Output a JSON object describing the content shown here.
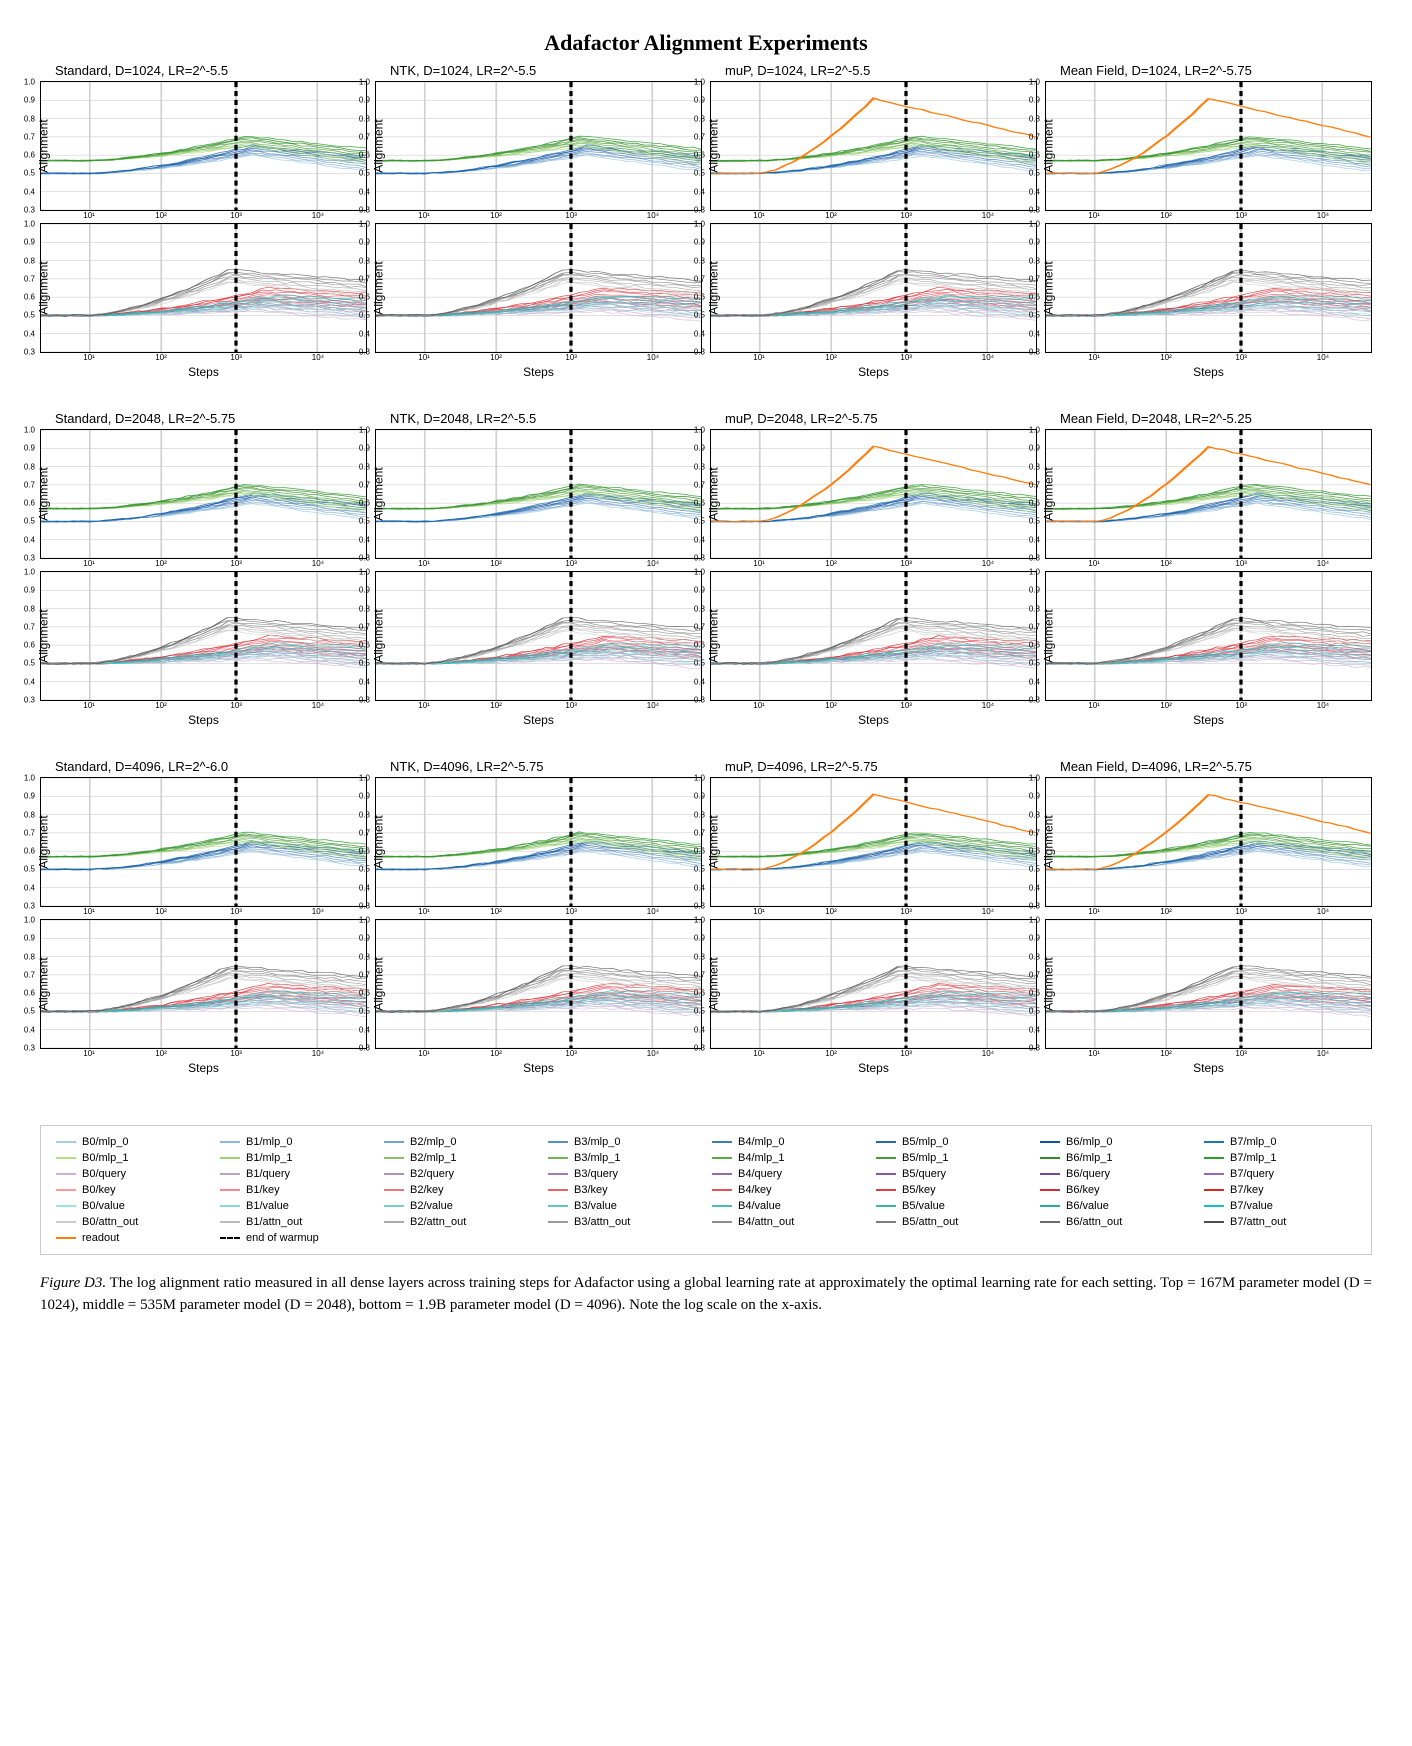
{
  "title": "Adafactor Alignment Experiments",
  "ylabel": "Alignment",
  "xlabel": "Steps",
  "ylim": [
    0.3,
    1.0
  ],
  "yticks": [
    0.3,
    0.4,
    0.5,
    0.6,
    0.7,
    0.8,
    0.9,
    1.0
  ],
  "xticks": [
    "10¹",
    "10²",
    "10³",
    "10⁴"
  ],
  "xtick_positions": [
    0.15,
    0.37,
    0.6,
    0.85
  ],
  "warmup_vline_x": 0.6,
  "background_color": "#ffffff",
  "grid_color": "#d0d0d0",
  "sections": [
    {
      "d": 1024,
      "panels": [
        {
          "title": "Standard, D=1024, LR=2^-5.5"
        },
        {
          "title": "NTK, D=1024, LR=2^-5.5"
        },
        {
          "title": "muP, D=1024, LR=2^-5.5"
        },
        {
          "title": "Mean Field, D=1024, LR=2^-5.75"
        }
      ]
    },
    {
      "d": 2048,
      "panels": [
        {
          "title": "Standard, D=2048, LR=2^-5.75"
        },
        {
          "title": "NTK, D=2048, LR=2^-5.5"
        },
        {
          "title": "muP, D=2048, LR=2^-5.75"
        },
        {
          "title": "Mean Field, D=2048, LR=2^-5.25"
        }
      ]
    },
    {
      "d": 4096,
      "panels": [
        {
          "title": "Standard, D=4096, LR=2^-6.0"
        },
        {
          "title": "NTK, D=4096, LR=2^-5.75"
        },
        {
          "title": "muP, D=4096, LR=2^-5.75"
        },
        {
          "title": "Mean Field, D=4096, LR=2^-5.75"
        }
      ]
    }
  ],
  "top_series_samples": {
    "green_cluster": {
      "start_y": 0.57,
      "peak_y": 0.68,
      "end_y": 0.6,
      "peak_x": 0.63,
      "color": "#2ca02c"
    },
    "blue_cluster": {
      "start_y": 0.5,
      "peak_y": 0.63,
      "end_y": 0.56,
      "peak_x": 0.65,
      "color": "#1f77b4"
    },
    "orange_readout": {
      "start_y": 0.5,
      "peak_y": 0.91,
      "end_y": 0.7,
      "peak_x": 0.5,
      "color": "#ff7f0e"
    }
  },
  "bot_series_samples": {
    "gray_cluster": {
      "start_y": 0.5,
      "peak_y": 0.72,
      "end_y": 0.65,
      "peak_x": 0.58,
      "color": "#7f7f7f"
    },
    "red_cluster": {
      "start_y": 0.5,
      "peak_y": 0.62,
      "end_y": 0.58,
      "peak_x": 0.7,
      "color": "#d62728"
    },
    "cyan_cluster": {
      "start_y": 0.5,
      "peak_y": 0.58,
      "end_y": 0.55,
      "peak_x": 0.72,
      "color": "#17becf"
    },
    "magenta_cluster": {
      "start_y": 0.5,
      "peak_y": 0.56,
      "end_y": 0.53,
      "peak_x": 0.68,
      "color": "#e377c2"
    }
  },
  "legend_colors": {
    "mlp_0": [
      "#a6cee3",
      "#8db8d8",
      "#74a3cd",
      "#5c8ec2",
      "#4379b7",
      "#2a64ac",
      "#124fa1",
      "#1f77b4"
    ],
    "mlp_1": [
      "#b2df8a",
      "#9dd17a",
      "#88c36a",
      "#73b55a",
      "#5ea74a",
      "#49993a",
      "#348b2a",
      "#2ca02c"
    ],
    "query": [
      "#cab2d6",
      "#bda0cb",
      "#b08ec0",
      "#a37cb5",
      "#966aaa",
      "#89589f",
      "#7c4694",
      "#9467bd"
    ],
    "key": [
      "#fb9a99",
      "#f58889",
      "#ef7679",
      "#e96469",
      "#e35259",
      "#dd4049",
      "#d72e39",
      "#d62728"
    ],
    "value": [
      "#a0e0df",
      "#8cd7d5",
      "#78cecb",
      "#64c5c1",
      "#50bcb7",
      "#3cb3ad",
      "#28aaa3",
      "#17becf"
    ],
    "attn_out": [
      "#cccccc",
      "#bcbcbc",
      "#acacac",
      "#9c9c9c",
      "#8c8c8c",
      "#7c7c7c",
      "#6c6c6c",
      "#4d4d4d"
    ]
  },
  "legend_readout_color": "#ff7f0e",
  "legend_items_extra": [
    {
      "label": "readout",
      "type": "line",
      "color": "#ff7f0e"
    },
    {
      "label": "end of warmup",
      "type": "dash"
    }
  ],
  "caption_lead": "Figure D3.",
  "caption_body": " The log alignment ratio measured in all dense layers across training steps for Adafactor using a global learning rate at approximately the optimal learning rate for each setting. Top = 167M parameter model (D = 1024), middle = 535M parameter model (D = 2048), bottom = 1.9B parameter model (D = 4096). Note the log scale on the x-axis."
}
